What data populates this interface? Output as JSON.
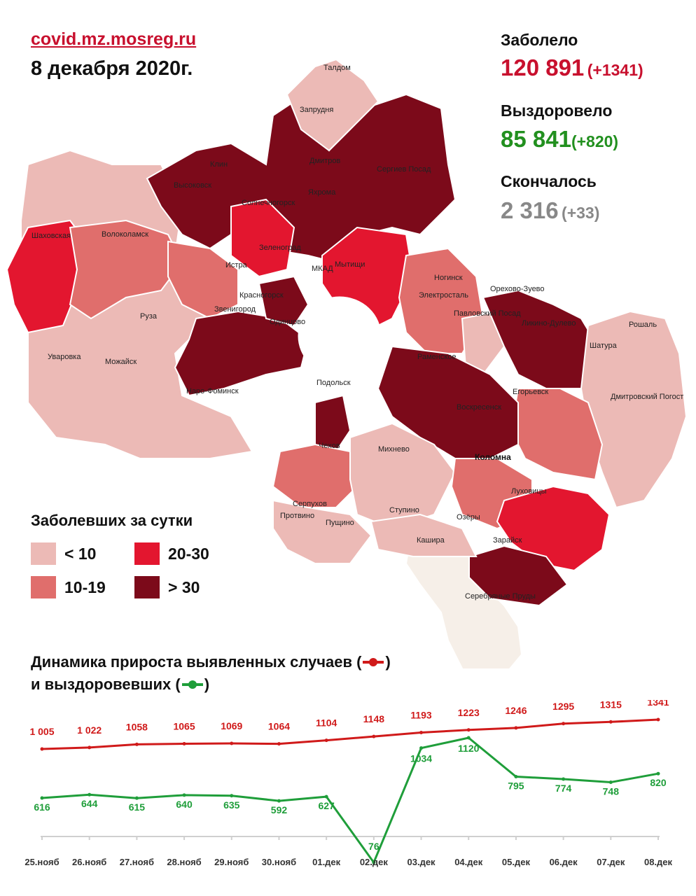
{
  "header": {
    "source": "covid.mz.mosreg.ru",
    "date": "8 декабря 2020г."
  },
  "stats": {
    "sick": {
      "label": "Заболело",
      "value": "120 891",
      "delta": "(+1341)",
      "color": "#c8102e"
    },
    "recovered": {
      "label": "Выздоровело",
      "value": "85 841",
      "delta": "(+820)",
      "color": "#22901f"
    },
    "died": {
      "label": "Скончалось",
      "value": "2 316",
      "delta": "(+33)",
      "color": "#888888"
    }
  },
  "legend": {
    "title": "Заболевших за сутки",
    "items": [
      {
        "label": "< 10",
        "color": "#ecbab6"
      },
      {
        "label": "20-30",
        "color": "#e3162f"
      },
      {
        "label": "10-19",
        "color": "#e06e6c"
      },
      {
        "label": "> 30",
        "color": "#7c0a1a"
      }
    ]
  },
  "map_labels": [
    "Талдом",
    "Запрудня",
    "Клин",
    "Высоковск",
    "Дмитров",
    "Яхрома",
    "Сергиев Посад",
    "Солнечногорск",
    "Шаховская",
    "Волоколамск",
    "Зеленоград",
    "Истра",
    "Мытищи",
    "Ногинск",
    "Электросталь",
    "Орехово-Зуево",
    "Красногорск",
    "Звенигород",
    "Одинцово",
    "Павловский Посад",
    "Ликино-Дулево",
    "Руза",
    "Рошаль",
    "Уваровка",
    "Можайск",
    "Раменское",
    "Шатура",
    "Наро-Фоминск",
    "Подольск",
    "Егорьевск",
    "Воскресенск",
    "Дмитровский Погост",
    "Чехов",
    "Михнево",
    "Коломна",
    "Луховицы",
    "Серпухов",
    "Пущино",
    "Ступино",
    "Озёры",
    "Протвино",
    "Кашира",
    "Зарайск",
    "Серебряные Пруды",
    "МКАД"
  ],
  "chart_title_line1": "Динамика прироста выявленных случаев (",
  "chart_title_line1_end": ")",
  "chart_title_line2": "и выздоровевших (",
  "chart_title_line2_end": ")",
  "chart_data": {
    "type": "line",
    "x": [
      "25.нояб",
      "26.нояб",
      "27.нояб",
      "28.нояб",
      "29.нояб",
      "30.нояб",
      "01.дек",
      "02.дек",
      "03.дек",
      "04.дек",
      "05.дек",
      "06.дек",
      "07.дек",
      "08.дек"
    ],
    "series": [
      {
        "color": "#d01a1a",
        "values": [
          1005,
          1022,
          1058,
          1065,
          1069,
          1064,
          1104,
          1148,
          1193,
          1223,
          1246,
          1295,
          1315,
          1341
        ],
        "labels": [
          "1 005",
          "1 022",
          "1058",
          "1065",
          "1069",
          "1064",
          "1104",
          "1148",
          "1193",
          "1223",
          "1246",
          "1295",
          "1315",
          "1341"
        ]
      },
      {
        "color": "#1f9e3a",
        "values": [
          616,
          644,
          615,
          640,
          635,
          592,
          627,
          76,
          1034,
          1120,
          795,
          774,
          748,
          820
        ],
        "labels": [
          "616",
          "644",
          "615",
          "640",
          "635",
          "592",
          "627",
          "76",
          "1034",
          "1120",
          "795",
          "774",
          "748",
          "820"
        ]
      }
    ],
    "grid": false,
    "legend": "title"
  }
}
